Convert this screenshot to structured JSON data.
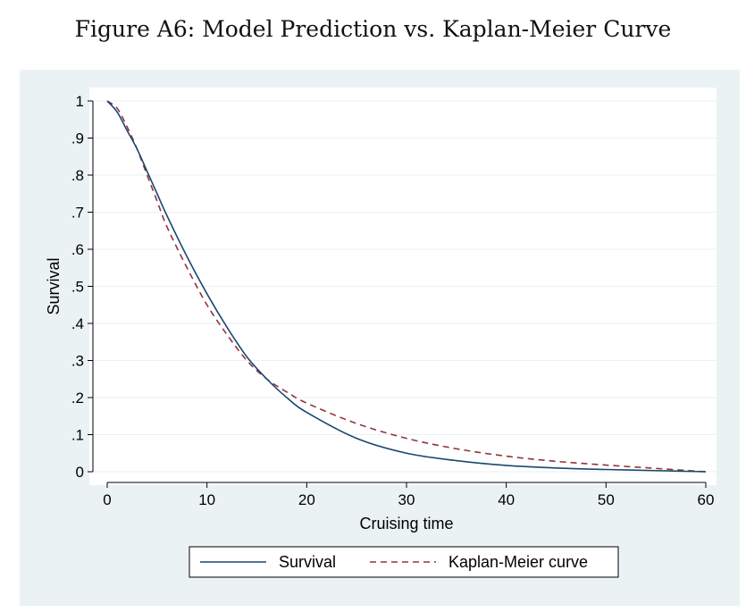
{
  "figure_title": "Figure A6: Model Prediction vs. Kaplan-Meier Curve",
  "colors": {
    "background": "#eaf2f3",
    "plot_area": "#ffffff",
    "survival": "#1a476f",
    "kaplan_meier": "#90353b",
    "grid": "#eaf2f3"
  },
  "chart_data": {
    "type": "line",
    "title": "",
    "xlabel": "Cruising time",
    "ylabel": "Survival",
    "xlim": [
      0,
      60
    ],
    "ylim": [
      0,
      1
    ],
    "xticks": [
      0,
      10,
      20,
      30,
      40,
      50,
      60
    ],
    "xtick_labels": [
      "0",
      "10",
      "20",
      "30",
      "40",
      "50",
      "60"
    ],
    "yticks": [
      0,
      0.1,
      0.2,
      0.3,
      0.4,
      0.5,
      0.6,
      0.7,
      0.8,
      0.9,
      1
    ],
    "ytick_labels": [
      "0",
      ".1",
      ".2",
      ".3",
      ".4",
      ".5",
      ".6",
      ".7",
      ".8",
      ".9",
      "1"
    ],
    "grid": true,
    "legend_position": "bottom",
    "series": [
      {
        "name": "Survival",
        "style": "solid",
        "x": [
          0,
          1,
          2,
          3,
          4,
          5,
          6,
          8,
          10,
          12,
          14,
          16,
          18,
          20,
          25,
          30,
          35,
          40,
          45,
          50,
          55,
          60
        ],
        "y": [
          1.0,
          0.97,
          0.92,
          0.87,
          0.81,
          0.75,
          0.69,
          0.58,
          0.48,
          0.39,
          0.31,
          0.25,
          0.2,
          0.16,
          0.09,
          0.05,
          0.03,
          0.017,
          0.01,
          0.006,
          0.003,
          0.0
        ]
      },
      {
        "name": "Kaplan-Meier curve",
        "style": "dashed",
        "x": [
          0,
          1,
          2,
          3,
          4,
          5,
          6,
          8,
          10,
          12,
          14,
          16,
          18,
          20,
          25,
          30,
          35,
          40,
          45,
          50,
          55,
          60
        ],
        "y": [
          1.0,
          0.98,
          0.93,
          0.87,
          0.8,
          0.73,
          0.66,
          0.55,
          0.45,
          0.37,
          0.3,
          0.25,
          0.215,
          0.185,
          0.13,
          0.09,
          0.062,
          0.042,
          0.028,
          0.018,
          0.009,
          0.0
        ]
      }
    ]
  }
}
